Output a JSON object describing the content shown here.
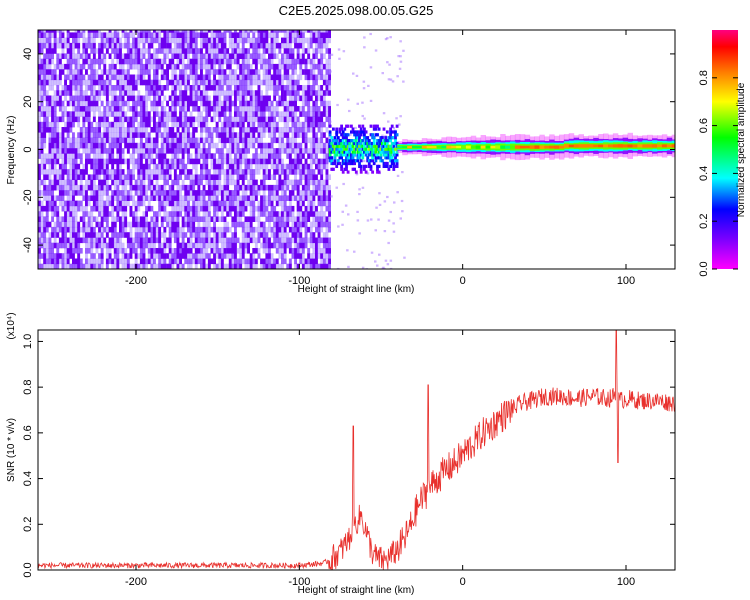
{
  "title": "C2E5.2025.098.00.05.G25",
  "chart_data": [
    {
      "type": "heatmap",
      "xlabel": "Height of straight line (km)",
      "ylabel": "Frequency (Hz)",
      "xlim": [
        -260,
        130
      ],
      "ylim": [
        -50,
        50
      ],
      "xticks": [
        -200,
        -100,
        0,
        100
      ],
      "yticks": [
        -40,
        -20,
        0,
        20,
        40
      ],
      "grid": false,
      "colorbar": {
        "label": "Normalized spectral amplitude",
        "range": [
          0,
          1
        ],
        "ticks": [
          "0.0",
          "0.2",
          "0.4",
          "0.6",
          "0.8"
        ],
        "colormap": "rainbow",
        "colors": [
          "#ff00ff",
          "#8000ff",
          "#0000ff",
          "#00ffff",
          "#00ff00",
          "#ffff00",
          "#ff8000",
          "#ff0000",
          "#ff0080"
        ]
      },
      "regions": [
        {
          "x": [
            -260,
            -82
          ],
          "description_value": "broadband noise, amplitude ~0.1-0.25"
        },
        {
          "x": [
            -82,
            -40
          ],
          "center_hz": 0,
          "halfwidth_hz": 10,
          "amplitude": 0.35
        },
        {
          "x": [
            -40,
            130
          ],
          "center_hz": 1,
          "halfwidth_hz": 3,
          "amplitude": 0.8
        }
      ]
    },
    {
      "type": "line",
      "xlabel": "Height of straight line (km)",
      "ylabel": "SNR (10 * v/v)",
      "scale_label": "(x10⁴)",
      "xlim": [
        -260,
        130
      ],
      "ylim": [
        0,
        1.05
      ],
      "xticks": [
        -200,
        -100,
        0,
        100
      ],
      "yticks": [
        "0.0",
        "0.2",
        "0.4",
        "0.6",
        "0.8",
        "1.0"
      ],
      "ytick_values": [
        0,
        0.2,
        0.4,
        0.6,
        0.8,
        1.0
      ],
      "color": "#e8302c",
      "series": [
        {
          "x": [
            -260,
            -100,
            -85,
            -80,
            -75,
            -70,
            -66,
            -62,
            -58,
            -55,
            -52,
            -48,
            -44,
            -40,
            -36,
            -32,
            -28,
            -25,
            -22,
            -18,
            -14,
            -10,
            -6,
            -2,
            2,
            6,
            10,
            14,
            18,
            22,
            26,
            30,
            36,
            42,
            50,
            60,
            70,
            80,
            90,
            94,
            96,
            100,
            110,
            120,
            130
          ],
          "y": [
            0.02,
            0.02,
            0.03,
            0.05,
            0.08,
            0.13,
            0.2,
            0.24,
            0.14,
            0.07,
            0.05,
            0.04,
            0.06,
            0.09,
            0.13,
            0.19,
            0.27,
            0.31,
            0.34,
            0.38,
            0.41,
            0.44,
            0.46,
            0.49,
            0.52,
            0.55,
            0.58,
            0.61,
            0.63,
            0.66,
            0.68,
            0.7,
            0.73,
            0.74,
            0.76,
            0.76,
            0.75,
            0.76,
            0.75,
            0.77,
            0.74,
            0.75,
            0.74,
            0.74,
            0.73
          ]
        }
      ],
      "spikes": [
        {
          "x": -67,
          "y": 0.63
        },
        {
          "x": -21,
          "y": 0.81
        },
        {
          "x": 94,
          "y": 1.05
        },
        {
          "x": 95,
          "y": 0.47
        }
      ]
    }
  ]
}
